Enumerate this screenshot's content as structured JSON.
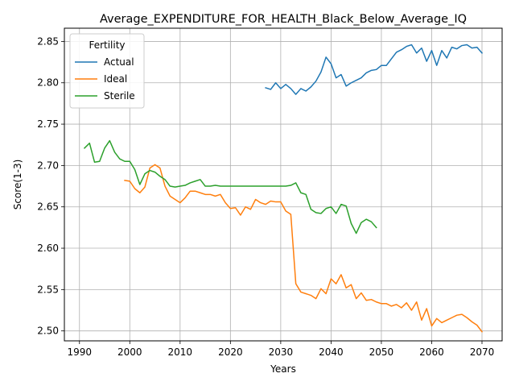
{
  "chart_data": {
    "type": "line",
    "title": "Average_EXPENDITURE_FOR_HEALTH_Black_Below_Average_IQ",
    "xlabel": "Years",
    "ylabel": "Score(1-3)",
    "xlim": [
      1987,
      2074
    ],
    "ylim": [
      2.488,
      2.866
    ],
    "xticks": [
      1990,
      2000,
      2010,
      2020,
      2030,
      2040,
      2050,
      2060,
      2070
    ],
    "yticks": [
      2.5,
      2.55,
      2.6,
      2.65,
      2.7,
      2.75,
      2.8,
      2.85
    ],
    "grid": true,
    "legend": {
      "title": "Fertility",
      "placement": "upper-left"
    },
    "series": [
      {
        "name": "Actual",
        "color": "#1f77b4",
        "points": [
          [
            2027,
            2.794
          ],
          [
            2028,
            2.792
          ],
          [
            2029,
            2.8
          ],
          [
            2030,
            2.793
          ],
          [
            2031,
            2.798
          ],
          [
            2032,
            2.793
          ],
          [
            2033,
            2.786
          ],
          [
            2034,
            2.793
          ],
          [
            2035,
            2.79
          ],
          [
            2036,
            2.795
          ],
          [
            2037,
            2.802
          ],
          [
            2038,
            2.813
          ],
          [
            2039,
            2.831
          ],
          [
            2040,
            2.823
          ],
          [
            2041,
            2.806
          ],
          [
            2042,
            2.81
          ],
          [
            2043,
            2.796
          ],
          [
            2044,
            2.8
          ],
          [
            2045,
            2.803
          ],
          [
            2046,
            2.806
          ],
          [
            2047,
            2.812
          ],
          [
            2048,
            2.815
          ],
          [
            2049,
            2.816
          ],
          [
            2050,
            2.821
          ],
          [
            2051,
            2.821
          ],
          [
            2052,
            2.829
          ],
          [
            2053,
            2.837
          ],
          [
            2054,
            2.84
          ],
          [
            2055,
            2.844
          ],
          [
            2056,
            2.846
          ],
          [
            2057,
            2.836
          ],
          [
            2058,
            2.842
          ],
          [
            2059,
            2.826
          ],
          [
            2060,
            2.839
          ],
          [
            2061,
            2.821
          ],
          [
            2062,
            2.839
          ],
          [
            2063,
            2.83
          ],
          [
            2064,
            2.843
          ],
          [
            2065,
            2.841
          ],
          [
            2066,
            2.845
          ],
          [
            2067,
            2.846
          ],
          [
            2068,
            2.842
          ],
          [
            2069,
            2.843
          ],
          [
            2070,
            2.836
          ]
        ]
      },
      {
        "name": "Ideal",
        "color": "#ff7f0e",
        "points": [
          [
            1999,
            2.682
          ],
          [
            2000,
            2.681
          ],
          [
            2001,
            2.672
          ],
          [
            2002,
            2.667
          ],
          [
            2003,
            2.674
          ],
          [
            2004,
            2.697
          ],
          [
            2005,
            2.701
          ],
          [
            2006,
            2.697
          ],
          [
            2007,
            2.675
          ],
          [
            2008,
            2.663
          ],
          [
            2009,
            2.659
          ],
          [
            2010,
            2.655
          ],
          [
            2011,
            2.661
          ],
          [
            2012,
            2.669
          ],
          [
            2013,
            2.669
          ],
          [
            2014,
            2.667
          ],
          [
            2015,
            2.665
          ],
          [
            2016,
            2.665
          ],
          [
            2017,
            2.663
          ],
          [
            2018,
            2.665
          ],
          [
            2019,
            2.655
          ],
          [
            2020,
            2.648
          ],
          [
            2021,
            2.649
          ],
          [
            2022,
            2.64
          ],
          [
            2023,
            2.65
          ],
          [
            2024,
            2.647
          ],
          [
            2025,
            2.659
          ],
          [
            2026,
            2.655
          ],
          [
            2027,
            2.653
          ],
          [
            2028,
            2.657
          ],
          [
            2029,
            2.656
          ],
          [
            2030,
            2.656
          ],
          [
            2031,
            2.645
          ],
          [
            2032,
            2.641
          ],
          [
            2033,
            2.557
          ],
          [
            2034,
            2.547
          ],
          [
            2035,
            2.545
          ],
          [
            2036,
            2.543
          ],
          [
            2037,
            2.539
          ],
          [
            2038,
            2.551
          ],
          [
            2039,
            2.545
          ],
          [
            2040,
            2.563
          ],
          [
            2041,
            2.557
          ],
          [
            2042,
            2.568
          ],
          [
            2043,
            2.552
          ],
          [
            2044,
            2.556
          ],
          [
            2045,
            2.539
          ],
          [
            2046,
            2.546
          ],
          [
            2047,
            2.537
          ],
          [
            2048,
            2.538
          ],
          [
            2049,
            2.535
          ],
          [
            2050,
            2.533
          ],
          [
            2051,
            2.533
          ],
          [
            2052,
            2.53
          ],
          [
            2053,
            2.532
          ],
          [
            2054,
            2.528
          ],
          [
            2055,
            2.534
          ],
          [
            2056,
            2.525
          ],
          [
            2057,
            2.535
          ],
          [
            2058,
            2.513
          ],
          [
            2059,
            2.527
          ],
          [
            2060,
            2.506
          ],
          [
            2061,
            2.515
          ],
          [
            2062,
            2.51
          ],
          [
            2063,
            2.513
          ],
          [
            2064,
            2.516
          ],
          [
            2065,
            2.519
          ],
          [
            2066,
            2.52
          ],
          [
            2067,
            2.516
          ],
          [
            2068,
            2.511
          ],
          [
            2069,
            2.507
          ],
          [
            2070,
            2.499
          ]
        ]
      },
      {
        "name": "Sterile",
        "color": "#2ca02c",
        "points": [
          [
            1991,
            2.721
          ],
          [
            1992,
            2.727
          ],
          [
            1993,
            2.704
          ],
          [
            1994,
            2.705
          ],
          [
            1995,
            2.721
          ],
          [
            1996,
            2.73
          ],
          [
            1997,
            2.716
          ],
          [
            1998,
            2.708
          ],
          [
            1999,
            2.705
          ],
          [
            2000,
            2.705
          ],
          [
            2001,
            2.695
          ],
          [
            2002,
            2.677
          ],
          [
            2003,
            2.69
          ],
          [
            2004,
            2.694
          ],
          [
            2005,
            2.692
          ],
          [
            2006,
            2.687
          ],
          [
            2007,
            2.683
          ],
          [
            2008,
            2.675
          ],
          [
            2009,
            2.674
          ],
          [
            2010,
            2.675
          ],
          [
            2011,
            2.676
          ],
          [
            2012,
            2.679
          ],
          [
            2013,
            2.681
          ],
          [
            2014,
            2.683
          ],
          [
            2015,
            2.675
          ],
          [
            2016,
            2.675
          ],
          [
            2017,
            2.676
          ],
          [
            2018,
            2.675
          ],
          [
            2019,
            2.675
          ],
          [
            2020,
            2.675
          ],
          [
            2021,
            2.675
          ],
          [
            2022,
            2.675
          ],
          [
            2023,
            2.675
          ],
          [
            2024,
            2.675
          ],
          [
            2025,
            2.675
          ],
          [
            2026,
            2.675
          ],
          [
            2027,
            2.675
          ],
          [
            2028,
            2.675
          ],
          [
            2029,
            2.675
          ],
          [
            2030,
            2.675
          ],
          [
            2031,
            2.675
          ],
          [
            2032,
            2.676
          ],
          [
            2033,
            2.679
          ],
          [
            2034,
            2.667
          ],
          [
            2035,
            2.665
          ],
          [
            2036,
            2.647
          ],
          [
            2037,
            2.643
          ],
          [
            2038,
            2.642
          ],
          [
            2039,
            2.648
          ],
          [
            2040,
            2.65
          ],
          [
            2041,
            2.642
          ],
          [
            2042,
            2.653
          ],
          [
            2043,
            2.651
          ],
          [
            2044,
            2.63
          ],
          [
            2045,
            2.618
          ],
          [
            2046,
            2.631
          ],
          [
            2047,
            2.635
          ],
          [
            2048,
            2.632
          ],
          [
            2049,
            2.625
          ]
        ]
      }
    ]
  }
}
